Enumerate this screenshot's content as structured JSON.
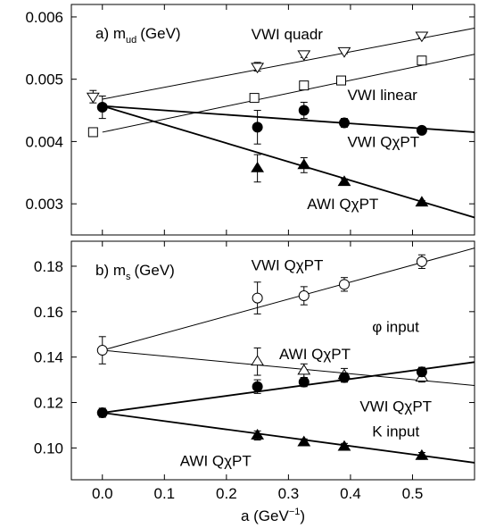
{
  "chart_data": [
    {
      "type": "scatter",
      "panel_label": "a)",
      "title_main": "m",
      "title_sub": "ud",
      "title_unit": "(GeV)",
      "xlim": [
        -0.05,
        0.6
      ],
      "ylim": [
        0.0025,
        0.0062
      ],
      "yticks": [
        0.003,
        0.004,
        0.005,
        0.006
      ],
      "ytick_labels": [
        "0.003",
        "0.004",
        "0.005",
        "0.006"
      ],
      "xticks": [
        0.0,
        0.1,
        0.2,
        0.3,
        0.4,
        0.5
      ],
      "series": [
        {
          "name": "VWI quadr",
          "marker": "triangle-down-open",
          "points": [
            {
              "x": -0.015,
              "y": 0.00472,
              "err": 0.0001
            },
            {
              "x": 0.25,
              "y": 0.0052,
              "err": 7e-05
            },
            {
              "x": 0.325,
              "y": 0.0054,
              "err": 5e-05
            },
            {
              "x": 0.39,
              "y": 0.00545,
              "err": 4e-05
            },
            {
              "x": 0.515,
              "y": 0.0057,
              "err": 4e-05
            }
          ],
          "fit": {
            "x": [
              0.0,
              0.6
            ],
            "y": [
              0.00468,
              0.00582
            ],
            "weight": "thin"
          }
        },
        {
          "name": "VWI linear",
          "marker": "square-open",
          "points": [
            {
              "x": -0.015,
              "y": 0.00415,
              "err": 0
            },
            {
              "x": 0.245,
              "y": 0.0047,
              "err": 0
            },
            {
              "x": 0.325,
              "y": 0.0049,
              "err": 0
            },
            {
              "x": 0.385,
              "y": 0.00498,
              "err": 0
            },
            {
              "x": 0.515,
              "y": 0.0053,
              "err": 0
            }
          ],
          "fit": {
            "x": [
              0.0,
              0.6
            ],
            "y": [
              0.00415,
              0.0054
            ],
            "weight": "thin"
          }
        },
        {
          "name": "VWI QχPT",
          "marker": "circle-filled",
          "points": [
            {
              "x": 0.0,
              "y": 0.00455,
              "err": 0.00018
            },
            {
              "x": 0.25,
              "y": 0.00423,
              "err": 0.00027
            },
            {
              "x": 0.325,
              "y": 0.0045,
              "err": 0.00013
            },
            {
              "x": 0.39,
              "y": 0.0043,
              "err": 7e-05
            },
            {
              "x": 0.515,
              "y": 0.00418,
              "err": 5e-05
            }
          ],
          "fit": {
            "x": [
              0.0,
              0.6
            ],
            "y": [
              0.00457,
              0.00415
            ],
            "weight": "thick"
          }
        },
        {
          "name": "AWI QχPT",
          "marker": "triangle-up-filled",
          "points": [
            {
              "x": 0.25,
              "y": 0.00357,
              "err": 0.00022
            },
            {
              "x": 0.325,
              "y": 0.00362,
              "err": 0.00012
            },
            {
              "x": 0.39,
              "y": 0.00335,
              "err": 5e-05
            },
            {
              "x": 0.515,
              "y": 0.00302,
              "err": 3e-05
            }
          ],
          "fit": {
            "x": [
              0.0,
              0.6
            ],
            "y": [
              0.00457,
              0.00278
            ],
            "weight": "thick"
          }
        }
      ],
      "annotations": [
        {
          "text": "VWI quadr",
          "x": 0.24,
          "y": 0.00573
        },
        {
          "text": "VWI linear",
          "x": 0.395,
          "y": 0.00475
        },
        {
          "text": "VWI QχPT",
          "x": 0.395,
          "y": 0.004
        },
        {
          "text": "AWI QχPT",
          "x": 0.33,
          "y": 0.003
        }
      ]
    },
    {
      "type": "scatter",
      "panel_label": "b)",
      "title_main": "m",
      "title_sub": "s",
      "title_unit": "(GeV)",
      "xlim": [
        -0.05,
        0.6
      ],
      "ylim": [
        0.086,
        0.191
      ],
      "yticks": [
        0.1,
        0.12,
        0.14,
        0.16,
        0.18
      ],
      "ytick_labels": [
        "0.10",
        "0.12",
        "0.14",
        "0.16",
        "0.18"
      ],
      "xticks": [
        0.0,
        0.1,
        0.2,
        0.3,
        0.4,
        0.5
      ],
      "xtick_labels": [
        "0.0",
        "0.1",
        "0.2",
        "0.3",
        "0.4",
        "0.5"
      ],
      "xlabel_main": "a (GeV",
      "xlabel_sup": "−1",
      "xlabel_close": ")",
      "series": [
        {
          "name": "VWI QχPT (φ input)",
          "marker": "circle-open",
          "points": [
            {
              "x": 0.0,
              "y": 0.143,
              "err": 0.006
            },
            {
              "x": 0.25,
              "y": 0.166,
              "err": 0.007
            },
            {
              "x": 0.325,
              "y": 0.167,
              "err": 0.004
            },
            {
              "x": 0.39,
              "y": 0.172,
              "err": 0.003
            },
            {
              "x": 0.515,
              "y": 0.182,
              "err": 0.003
            }
          ],
          "fit": {
            "x": [
              0.0,
              0.6
            ],
            "y": [
              0.143,
              0.188
            ],
            "weight": "thin"
          }
        },
        {
          "name": "AWI QχPT (φ input)",
          "marker": "triangle-up-open",
          "points": [
            {
              "x": 0.25,
              "y": 0.138,
              "err": 0.006
            },
            {
              "x": 0.325,
              "y": 0.134,
              "err": 0.003
            },
            {
              "x": 0.39,
              "y": 0.132,
              "err": 0.003
            },
            {
              "x": 0.515,
              "y": 0.131,
              "err": 0.002
            }
          ],
          "fit": {
            "x": [
              0.0,
              0.6
            ],
            "y": [
              0.143,
              0.1275
            ],
            "weight": "thin"
          }
        },
        {
          "name": "VWI QχPT (K input)",
          "marker": "circle-filled",
          "points": [
            {
              "x": 0.0,
              "y": 0.1155,
              "err": 0.002
            },
            {
              "x": 0.25,
              "y": 0.127,
              "err": 0.003
            },
            {
              "x": 0.325,
              "y": 0.129,
              "err": 0.002
            },
            {
              "x": 0.39,
              "y": 0.131,
              "err": 0.002
            },
            {
              "x": 0.515,
              "y": 0.1335,
              "err": 0.002
            }
          ],
          "fit": {
            "x": [
              0.0,
              0.6
            ],
            "y": [
              0.1155,
              0.1378
            ],
            "weight": "thick"
          }
        },
        {
          "name": "AWI QχPT (K input)",
          "marker": "triangle-up-filled",
          "points": [
            {
              "x": 0.25,
              "y": 0.1055,
              "err": 0.002
            },
            {
              "x": 0.325,
              "y": 0.1025,
              "err": 0.0015
            },
            {
              "x": 0.39,
              "y": 0.1005,
              "err": 0.0015
            },
            {
              "x": 0.515,
              "y": 0.0965,
              "err": 0.0015
            }
          ],
          "fit": {
            "x": [
              0.0,
              0.6
            ],
            "y": [
              0.1155,
              0.0935
            ],
            "weight": "thick"
          }
        }
      ],
      "annotations": [
        {
          "text": "VWI QχPT",
          "x": 0.24,
          "y": 0.1805
        },
        {
          "text": "φ input",
          "x": 0.435,
          "y": 0.1535
        },
        {
          "text": "AWI QχPT",
          "x": 0.285,
          "y": 0.1415
        },
        {
          "text": "VWI QχPT",
          "x": 0.415,
          "y": 0.1185
        },
        {
          "text": "K input",
          "x": 0.435,
          "y": 0.1075
        },
        {
          "text": "AWI QχPT",
          "x": 0.125,
          "y": 0.0945
        }
      ]
    }
  ]
}
